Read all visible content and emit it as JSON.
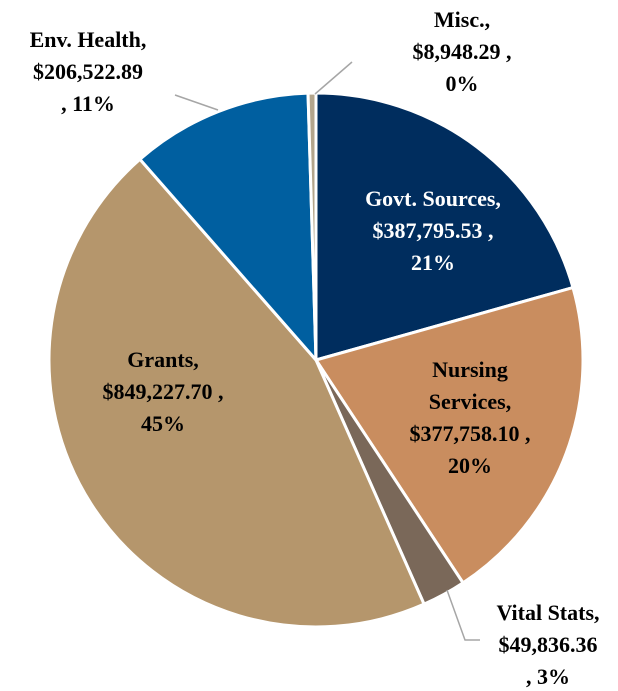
{
  "chart_data": {
    "type": "pie",
    "labels": [
      [
        "Govt. Sources,",
        "$387,795.53 ,",
        "21%"
      ],
      [
        "Nursing",
        "Services,",
        "$377,758.10 ,",
        "20%"
      ],
      [
        "Vital Stats,",
        "$49,836.36",
        ", 3%"
      ],
      [
        "Grants,",
        "$849,227.70 ,",
        "45%"
      ],
      [
        "Env. Health,",
        "$206,522.89",
        ", 11%"
      ],
      [
        "Misc.,",
        "$8,948.29 ,",
        "0%"
      ]
    ],
    "values": [
      387795.53,
      377758.1,
      49836.36,
      849227.7,
      206522.89,
      8948.29
    ],
    "colors": [
      "#002d5e",
      "#c98d5f",
      "#7a6859",
      "#b5966c",
      "#005fa0",
      "#b3a58c"
    ],
    "start_angle": 0,
    "direction": "clockwise"
  }
}
